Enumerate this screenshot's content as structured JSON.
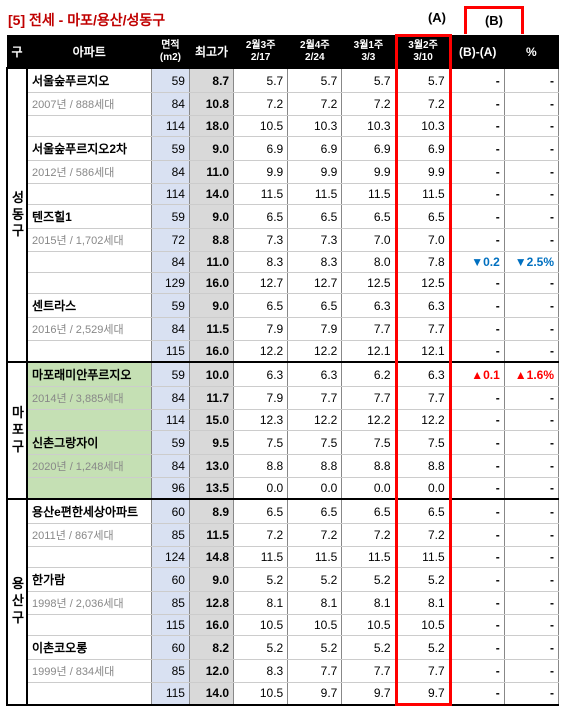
{
  "title": "[5] 전세 - 마포/용산/성동구",
  "label_a": "(A)",
  "label_b": "(B)",
  "headers": {
    "gu": "구",
    "apt": "아파트",
    "area": "면적\n(m2)",
    "peak": "최고가",
    "w1": {
      "top": "2월3주",
      "sub": "2/17"
    },
    "w2": {
      "top": "2월4주",
      "sub": "2/24"
    },
    "w3": {
      "top": "3월1주",
      "sub": "3/3"
    },
    "w4": {
      "top": "3월2주",
      "sub": "3/10"
    },
    "diff": "(B)-(A)",
    "pct": "%"
  },
  "districts": [
    {
      "name": "성\n동\n구",
      "rowspan": 13,
      "apts": [
        {
          "name": "서울숲푸르지오",
          "sub": "2007년 / 888세대",
          "green": false,
          "rows": [
            {
              "area": "59",
              "peak": "8.7",
              "v": [
                "5.7",
                "5.7",
                "5.7",
                "5.7"
              ],
              "diff": "-",
              "pct": "-"
            },
            {
              "area": "84",
              "peak": "10.8",
              "v": [
                "7.2",
                "7.2",
                "7.2",
                "7.2"
              ],
              "diff": "-",
              "pct": "-"
            },
            {
              "area": "114",
              "peak": "18.0",
              "v": [
                "10.5",
                "10.3",
                "10.3",
                "10.3"
              ],
              "diff": "-",
              "pct": "-"
            }
          ]
        },
        {
          "name": "서울숲푸르지오2차",
          "sub": "2012년 / 586세대",
          "green": false,
          "rows": [
            {
              "area": "59",
              "peak": "9.0",
              "v": [
                "6.9",
                "6.9",
                "6.9",
                "6.9"
              ],
              "diff": "-",
              "pct": "-"
            },
            {
              "area": "84",
              "peak": "11.0",
              "v": [
                "9.9",
                "9.9",
                "9.9",
                "9.9"
              ],
              "diff": "-",
              "pct": "-"
            },
            {
              "area": "114",
              "peak": "14.0",
              "v": [
                "11.5",
                "11.5",
                "11.5",
                "11.5"
              ],
              "diff": "-",
              "pct": "-"
            }
          ]
        },
        {
          "name": "텐즈힐1",
          "sub": "2015년 / 1,702세대",
          "green": false,
          "rows": [
            {
              "area": "59",
              "peak": "9.0",
              "v": [
                "6.5",
                "6.5",
                "6.5",
                "6.5"
              ],
              "diff": "-",
              "pct": "-"
            },
            {
              "area": "72",
              "peak": "8.8",
              "v": [
                "7.3",
                "7.3",
                "7.0",
                "7.0"
              ],
              "diff": "-",
              "pct": "-"
            },
            {
              "area": "84",
              "peak": "11.0",
              "v": [
                "8.3",
                "8.3",
                "8.0",
                "7.8"
              ],
              "diff": "▼0.2",
              "pct": "▼2.5%",
              "cls": "down"
            },
            {
              "area": "129",
              "peak": "16.0",
              "v": [
                "12.7",
                "12.7",
                "12.5",
                "12.5"
              ],
              "diff": "-",
              "pct": "-"
            }
          ]
        },
        {
          "name": "센트라스",
          "sub": "2016년 / 2,529세대",
          "green": false,
          "rows": [
            {
              "area": "59",
              "peak": "9.0",
              "v": [
                "6.5",
                "6.5",
                "6.3",
                "6.3"
              ],
              "diff": "-",
              "pct": "-"
            },
            {
              "area": "84",
              "peak": "11.5",
              "v": [
                "7.9",
                "7.9",
                "7.7",
                "7.7"
              ],
              "diff": "-",
              "pct": "-"
            },
            {
              "area": "115",
              "peak": "16.0",
              "v": [
                "12.2",
                "12.2",
                "12.1",
                "12.1"
              ],
              "diff": "-",
              "pct": "-"
            }
          ]
        }
      ]
    },
    {
      "name": "마\n포\n구",
      "rowspan": 6,
      "apts": [
        {
          "name": "마포래미안푸르지오",
          "sub": "2014년 / 3,885세대",
          "green": true,
          "rows": [
            {
              "area": "59",
              "peak": "10.0",
              "v": [
                "6.3",
                "6.3",
                "6.2",
                "6.3"
              ],
              "diff": "▲0.1",
              "pct": "▲1.6%",
              "cls": "up"
            },
            {
              "area": "84",
              "peak": "11.7",
              "v": [
                "7.9",
                "7.7",
                "7.7",
                "7.7"
              ],
              "diff": "-",
              "pct": "-"
            },
            {
              "area": "114",
              "peak": "15.0",
              "v": [
                "12.3",
                "12.2",
                "12.2",
                "12.2"
              ],
              "diff": "-",
              "pct": "-"
            }
          ]
        },
        {
          "name": "신촌그랑자이",
          "sub": "2020년 / 1,248세대",
          "green": true,
          "rows": [
            {
              "area": "59",
              "peak": "9.5",
              "v": [
                "7.5",
                "7.5",
                "7.5",
                "7.5"
              ],
              "diff": "-",
              "pct": "-"
            },
            {
              "area": "84",
              "peak": "13.0",
              "v": [
                "8.8",
                "8.8",
                "8.8",
                "8.8"
              ],
              "diff": "-",
              "pct": "-"
            },
            {
              "area": "96",
              "peak": "13.5",
              "v": [
                "0.0",
                "0.0",
                "0.0",
                "0.0"
              ],
              "diff": "-",
              "pct": "-"
            }
          ]
        }
      ]
    },
    {
      "name": "용\n산\n구",
      "rowspan": 9,
      "apts": [
        {
          "name": "용산e편한세상아파트",
          "sub": "2011년 / 867세대",
          "green": false,
          "rows": [
            {
              "area": "60",
              "peak": "8.9",
              "v": [
                "6.5",
                "6.5",
                "6.5",
                "6.5"
              ],
              "diff": "-",
              "pct": "-"
            },
            {
              "area": "85",
              "peak": "11.5",
              "v": [
                "7.2",
                "7.2",
                "7.2",
                "7.2"
              ],
              "diff": "-",
              "pct": "-"
            },
            {
              "area": "124",
              "peak": "14.8",
              "v": [
                "11.5",
                "11.5",
                "11.5",
                "11.5"
              ],
              "diff": "-",
              "pct": "-"
            }
          ]
        },
        {
          "name": "한가람",
          "sub": "1998년 / 2,036세대",
          "green": false,
          "rows": [
            {
              "area": "60",
              "peak": "9.0",
              "v": [
                "5.2",
                "5.2",
                "5.2",
                "5.2"
              ],
              "diff": "-",
              "pct": "-"
            },
            {
              "area": "85",
              "peak": "12.8",
              "v": [
                "8.1",
                "8.1",
                "8.1",
                "8.1"
              ],
              "diff": "-",
              "pct": "-"
            },
            {
              "area": "115",
              "peak": "16.0",
              "v": [
                "10.5",
                "10.5",
                "10.5",
                "10.5"
              ],
              "diff": "-",
              "pct": "-"
            }
          ]
        },
        {
          "name": "이촌코오롱",
          "sub": "1999년 / 834세대",
          "green": false,
          "rows": [
            {
              "area": "60",
              "peak": "8.2",
              "v": [
                "5.2",
                "5.2",
                "5.2",
                "5.2"
              ],
              "diff": "-",
              "pct": "-"
            },
            {
              "area": "85",
              "peak": "12.0",
              "v": [
                "8.3",
                "7.7",
                "7.7",
                "7.7"
              ],
              "diff": "-",
              "pct": "-"
            },
            {
              "area": "115",
              "peak": "14.0",
              "v": [
                "10.5",
                "9.7",
                "9.7",
                "9.7"
              ],
              "diff": "-",
              "pct": "-"
            }
          ]
        }
      ]
    }
  ]
}
